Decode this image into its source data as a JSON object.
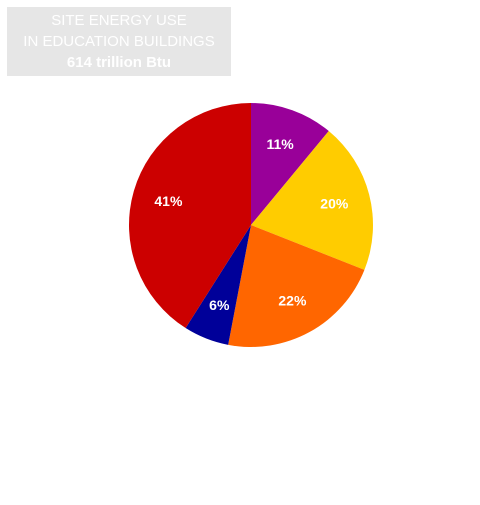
{
  "chart_data": {
    "type": "pie",
    "title_lines": [
      "SITE ENERGY USE",
      "IN EDUCATION BUILDINGS",
      "614 trillion Btu"
    ],
    "start_angle_deg": 0,
    "direction": "clockwise",
    "slices": [
      {
        "value": 11,
        "label": "11%",
        "color": "#990099"
      },
      {
        "value": 20,
        "label": "20%",
        "color": "#ffcc00"
      },
      {
        "value": 22,
        "label": "22%",
        "color": "#ff6600"
      },
      {
        "value": 6,
        "label": "6%",
        "color": "#000099"
      },
      {
        "value": 41,
        "label": "41%",
        "color": "#cc0000"
      }
    ]
  }
}
